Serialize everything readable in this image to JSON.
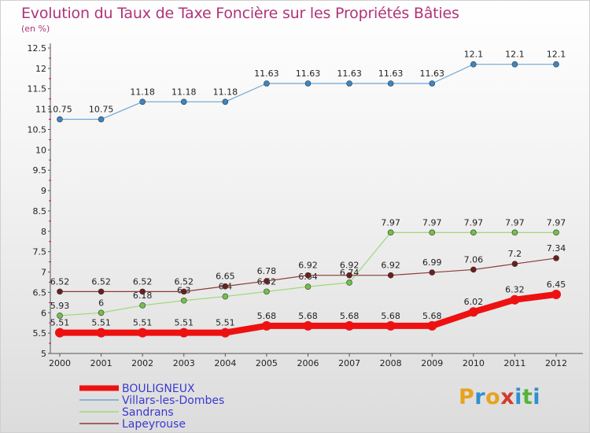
{
  "title": "Evolution du Taux de Taxe Foncière sur les Propriétés Bâties",
  "unit_label": "(en %)",
  "brand": {
    "text": "Proxiti",
    "letters": [
      {
        "ch": "P",
        "color": "#e8a21e"
      },
      {
        "ch": "r",
        "color": "#2f8fd0"
      },
      {
        "ch": "o",
        "color": "#e8a21e"
      },
      {
        "ch": "x",
        "color": "#d23b2a"
      },
      {
        "ch": "i",
        "color": "#2f8fd0"
      },
      {
        "ch": "t",
        "color": "#56b33a"
      },
      {
        "ch": "i",
        "color": "#2f8fd0"
      }
    ]
  },
  "chart_data": {
    "type": "line",
    "title": "Evolution du Taux de Taxe Foncière sur les Propriétés Bâties",
    "ylabel": "(en %)",
    "xlabel": "",
    "ylim": [
      5,
      12.5
    ],
    "ytick_step": 0.5,
    "ytick_labels": [
      "5",
      "5.5",
      "6",
      "6.5",
      "7",
      "7.5",
      "8",
      "8.5",
      "9",
      "9.5",
      "10",
      "10.5",
      "11",
      "11.5",
      "12",
      "12.5"
    ],
    "x": [
      2000,
      2001,
      2002,
      2003,
      2004,
      2005,
      2006,
      2007,
      2008,
      2009,
      2010,
      2011,
      2012
    ],
    "grid": false,
    "legend_position": "bottom-left",
    "series": [
      {
        "name": "Villars-les-Dombes",
        "color": "#6ea6d4",
        "marker": "#3b86c4",
        "width": 1.2,
        "radius": 3.5,
        "values": [
          10.75,
          10.75,
          11.18,
          11.18,
          11.18,
          11.63,
          11.63,
          11.63,
          11.63,
          11.63,
          12.1,
          12.1,
          12.1
        ],
        "labels": [
          "10.75",
          "10.75",
          "11.18",
          "11.18",
          "11.18",
          "11.63",
          "11.63",
          "11.63",
          "11.63",
          "11.63",
          "12.1",
          "12.1",
          "12.1"
        ]
      },
      {
        "name": "Sandrans",
        "color": "#9fd87a",
        "marker": "#74c04a",
        "width": 1.2,
        "radius": 3.5,
        "values": [
          5.93,
          6.0,
          6.18,
          6.3,
          6.4,
          6.52,
          6.64,
          6.74,
          7.97,
          7.97,
          7.97,
          7.97,
          7.97
        ],
        "labels": [
          "5.93",
          "6",
          "6.18",
          "6.3",
          "6.4",
          "6.52",
          "6.64",
          "6.74",
          "7.97",
          "7.97",
          "7.97",
          "7.97",
          "7.97"
        ]
      },
      {
        "name": "Lapeyrouse",
        "color": "#8a3a3a",
        "marker": "#6b1f1f",
        "width": 1.2,
        "radius": 3.5,
        "values": [
          6.52,
          6.52,
          6.52,
          6.52,
          6.65,
          6.78,
          6.92,
          6.92,
          6.92,
          6.99,
          7.06,
          7.2,
          7.34
        ],
        "labels": [
          "6.52",
          "6.52",
          "6.52",
          "6.52",
          "6.65",
          "6.78",
          "6.92",
          "6.92",
          "6.92",
          "6.99",
          "7.06",
          "7.2",
          "7.34"
        ]
      },
      {
        "name": "BOULIGNEUX",
        "color": "#ee1111",
        "marker": "#ee1111",
        "width": 8,
        "radius": 6,
        "values": [
          5.51,
          5.51,
          5.51,
          5.51,
          5.51,
          5.68,
          5.68,
          5.68,
          5.68,
          5.68,
          6.02,
          6.32,
          6.45
        ],
        "labels": [
          "5.51",
          "5.51",
          "5.51",
          "5.51",
          "5.51",
          "5.68",
          "5.68",
          "5.68",
          "5.68",
          "5.68",
          "6.02",
          "6.32",
          "6.45"
        ]
      }
    ],
    "legend_order": [
      "BOULIGNEUX",
      "Villars-les-Dombes",
      "Sandrans",
      "Lapeyrouse"
    ]
  }
}
